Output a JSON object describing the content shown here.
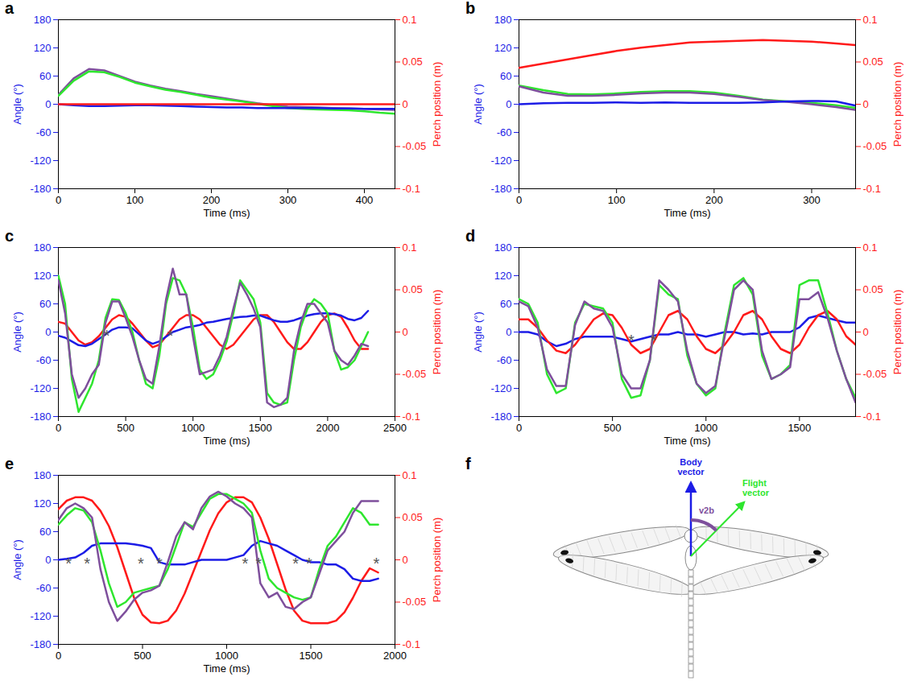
{
  "chart_data": [
    {
      "type": "line",
      "title": "a",
      "x_label": "Time (ms)",
      "y_label": "Angle (°)",
      "y2_label": "Perch position (m)",
      "xlim": [
        0,
        440
      ],
      "xticks": [
        0,
        100,
        200,
        300,
        400
      ],
      "ylim": [
        -180,
        180
      ],
      "yticks": [
        -180,
        -120,
        -60,
        0,
        60,
        120,
        180
      ],
      "y2lim": [
        -0.1,
        0.1
      ],
      "y2ticks": [
        -0.1,
        -0.05,
        0,
        0.05,
        0.1
      ],
      "x": [
        0,
        20,
        40,
        60,
        80,
        100,
        120,
        140,
        160,
        180,
        200,
        220,
        240,
        260,
        280,
        300,
        320,
        340,
        360,
        380,
        400,
        420,
        440
      ],
      "series": [
        {
          "color": "#7e4f9c",
          "values": [
            20,
            55,
            75,
            72,
            60,
            48,
            40,
            33,
            28,
            22,
            17,
            12,
            7,
            2,
            -2,
            -5,
            -6,
            -7,
            -8,
            -9,
            -10,
            -11,
            -12
          ]
        },
        {
          "color": "#2ee62e",
          "values": [
            18,
            50,
            70,
            68,
            58,
            46,
            38,
            31,
            26,
            20,
            14,
            10,
            6,
            1,
            -4,
            -8,
            -10,
            -11,
            -12,
            -13,
            -15,
            -18,
            -20
          ]
        },
        {
          "color": "#1c1ce6",
          "values": [
            0,
            -2,
            -4,
            -4,
            -3,
            -2,
            -2,
            -3,
            -4,
            -5,
            -6,
            -7,
            -7,
            -8,
            -8,
            -8,
            -8,
            -8,
            -9,
            -9,
            -10,
            -10,
            -10
          ]
        },
        {
          "color": "#ff1a1a",
          "axis": "y2",
          "values": [
            0,
            0,
            0,
            0,
            0,
            0,
            0,
            0,
            0,
            0,
            0,
            0,
            0,
            0,
            0,
            0,
            0,
            0,
            0,
            0,
            0,
            0,
            0
          ]
        }
      ],
      "annotations": []
    },
    {
      "type": "line",
      "title": "b",
      "x_label": "Time (ms)",
      "y_label": "Angle (°)",
      "y2_label": "Perch position (m)",
      "xlim": [
        0,
        345
      ],
      "xticks": [
        0,
        100,
        200,
        300
      ],
      "ylim": [
        -180,
        180
      ],
      "yticks": [
        -180,
        -120,
        -60,
        0,
        60,
        120,
        180
      ],
      "y2lim": [
        -0.1,
        0.1
      ],
      "y2ticks": [
        -0.1,
        -0.05,
        0,
        0.05,
        0.1
      ],
      "x": [
        0,
        25,
        50,
        75,
        100,
        125,
        150,
        175,
        200,
        225,
        250,
        275,
        300,
        325,
        345
      ],
      "series": [
        {
          "color": "#ff1a1a",
          "axis": "y2",
          "values": [
            0.043,
            0.048,
            0.053,
            0.058,
            0.063,
            0.067,
            0.07,
            0.073,
            0.074,
            0.075,
            0.076,
            0.075,
            0.074,
            0.072,
            0.07
          ]
        },
        {
          "color": "#2ee62e",
          "values": [
            40,
            30,
            22,
            21,
            23,
            26,
            28,
            28,
            25,
            18,
            10,
            6,
            3,
            -2,
            -8
          ]
        },
        {
          "color": "#7e4f9c",
          "values": [
            38,
            25,
            18,
            18,
            20,
            23,
            25,
            25,
            22,
            16,
            9,
            5,
            0,
            -6,
            -12
          ]
        },
        {
          "color": "#1c1ce6",
          "values": [
            0,
            2,
            3,
            3,
            4,
            3,
            4,
            3,
            3,
            3,
            4,
            6,
            7,
            6,
            -3
          ]
        }
      ],
      "annotations": []
    },
    {
      "type": "line",
      "title": "c",
      "x_label": "Time (ms)",
      "y_label": "Angle (°)",
      "y2_label": "Perch position (m)",
      "xlim": [
        0,
        2500
      ],
      "xticks": [
        0,
        500,
        1000,
        1500,
        2000,
        2500
      ],
      "ylim": [
        -180,
        180
      ],
      "yticks": [
        -180,
        -120,
        -60,
        0,
        60,
        120,
        180
      ],
      "y2lim": [
        -0.1,
        0.1
      ],
      "y2ticks": [
        -0.1,
        -0.05,
        0,
        0.05,
        0.1
      ],
      "x": [
        0,
        50,
        100,
        150,
        200,
        250,
        300,
        350,
        400,
        450,
        500,
        550,
        600,
        650,
        700,
        750,
        800,
        850,
        900,
        950,
        1000,
        1050,
        1100,
        1150,
        1200,
        1250,
        1300,
        1350,
        1400,
        1450,
        1500,
        1550,
        1600,
        1650,
        1700,
        1750,
        1800,
        1850,
        1900,
        1950,
        2000,
        2050,
        2100,
        2150,
        2200,
        2250,
        2300
      ],
      "series": [
        {
          "color": "#ff1a1a",
          "axis": "y2",
          "values": [
            0.012,
            0.01,
            0.0,
            -0.01,
            -0.015,
            -0.012,
            -0.005,
            0.005,
            0.015,
            0.02,
            0.018,
            0.01,
            0.0,
            -0.01,
            -0.018,
            -0.015,
            -0.005,
            0.005,
            0.015,
            0.02,
            0.02,
            0.015,
            0.005,
            -0.005,
            -0.015,
            -0.02,
            -0.015,
            -0.005,
            0.005,
            0.015,
            0.02,
            0.02,
            0.012,
            0.0,
            -0.012,
            -0.02,
            -0.02,
            -0.012,
            0.0,
            0.012,
            0.02,
            0.022,
            0.018,
            0.005,
            -0.01,
            -0.02,
            -0.02
          ]
        },
        {
          "color": "#1c1ce6",
          "values": [
            -8,
            -12,
            -20,
            -28,
            -30,
            -25,
            -15,
            -5,
            5,
            10,
            10,
            8,
            -5,
            -18,
            -25,
            -20,
            -10,
            0,
            5,
            10,
            12,
            15,
            20,
            22,
            25,
            28,
            30,
            32,
            33,
            35,
            35,
            30,
            25,
            22,
            22,
            25,
            30,
            35,
            38,
            40,
            40,
            38,
            35,
            28,
            25,
            30,
            45
          ]
        },
        {
          "color": "#2ee62e",
          "values": [
            120,
            60,
            -100,
            -170,
            -140,
            -110,
            -60,
            30,
            70,
            68,
            40,
            0,
            -60,
            -110,
            -120,
            -50,
            60,
            115,
            110,
            80,
            10,
            -80,
            -100,
            -90,
            -60,
            -20,
            40,
            110,
            90,
            70,
            20,
            -130,
            -150,
            -155,
            -150,
            -60,
            10,
            50,
            70,
            60,
            40,
            -40,
            -80,
            -75,
            -60,
            -30,
            0
          ]
        },
        {
          "color": "#7e4f9c",
          "values": [
            110,
            40,
            -90,
            -140,
            -120,
            -90,
            -70,
            20,
            65,
            65,
            30,
            -10,
            -60,
            -100,
            -110,
            -30,
            70,
            135,
            80,
            80,
            -10,
            -90,
            -85,
            -80,
            -50,
            -10,
            50,
            105,
            80,
            50,
            10,
            -150,
            -160,
            -155,
            -140,
            -40,
            20,
            60,
            60,
            40,
            20,
            -40,
            -60,
            -70,
            -50,
            -25,
            -30
          ]
        }
      ],
      "annotations": [
        {
          "text": "*",
          "x": 360,
          "y": 0
        },
        {
          "text": "*",
          "x": 830,
          "y": 0
        }
      ]
    },
    {
      "type": "line",
      "title": "d",
      "x_label": "Time (ms)",
      "y_label": "Angle (°)",
      "y2_label": "Perch position (m)",
      "xlim": [
        0,
        1800
      ],
      "xticks": [
        0,
        500,
        1000,
        1500
      ],
      "ylim": [
        -180,
        180
      ],
      "yticks": [
        -180,
        -120,
        -60,
        0,
        60,
        120,
        180
      ],
      "y2lim": [
        -0.1,
        0.1
      ],
      "y2ticks": [
        -0.1,
        -0.05,
        0,
        0.05,
        0.1
      ],
      "x": [
        0,
        50,
        100,
        150,
        200,
        250,
        300,
        350,
        400,
        450,
        500,
        550,
        600,
        650,
        700,
        750,
        800,
        850,
        900,
        950,
        1000,
        1050,
        1100,
        1150,
        1200,
        1250,
        1300,
        1350,
        1400,
        1450,
        1500,
        1550,
        1600,
        1650,
        1700,
        1750,
        1800
      ],
      "series": [
        {
          "color": "#1c1ce6",
          "values": [
            0,
            0,
            -5,
            -20,
            -30,
            -25,
            -15,
            -10,
            -10,
            -10,
            -10,
            -15,
            -20,
            -15,
            -10,
            -5,
            -5,
            0,
            -5,
            -5,
            -10,
            -5,
            0,
            0,
            -5,
            -3,
            -5,
            0,
            0,
            0,
            10,
            30,
            35,
            30,
            25,
            20,
            20
          ]
        },
        {
          "color": "#ff1a1a",
          "axis": "y2",
          "values": [
            0.015,
            0.015,
            0.005,
            -0.01,
            -0.022,
            -0.025,
            -0.015,
            0.0,
            0.015,
            0.022,
            0.02,
            0.005,
            -0.015,
            -0.025,
            -0.02,
            0.0,
            0.02,
            0.025,
            0.015,
            -0.005,
            -0.02,
            -0.025,
            -0.015,
            0.0,
            0.02,
            0.025,
            0.015,
            -0.005,
            -0.02,
            -0.025,
            -0.015,
            0.005,
            0.02,
            0.025,
            0.015,
            -0.005,
            -0.015
          ]
        },
        {
          "color": "#2ee62e",
          "values": [
            70,
            60,
            20,
            -90,
            -130,
            -120,
            20,
            60,
            55,
            50,
            20,
            -100,
            -140,
            -135,
            -60,
            100,
            80,
            70,
            -50,
            -110,
            -135,
            -120,
            0,
            100,
            115,
            80,
            -50,
            -100,
            -90,
            -70,
            100,
            110,
            110,
            40,
            -40,
            -100,
            -140
          ]
        },
        {
          "color": "#7e4f9c",
          "values": [
            65,
            55,
            10,
            -80,
            -115,
            -115,
            15,
            65,
            50,
            45,
            10,
            -90,
            -120,
            -120,
            -60,
            110,
            90,
            65,
            -40,
            -110,
            -130,
            -115,
            -10,
            90,
            110,
            90,
            -40,
            -100,
            -90,
            -75,
            70,
            70,
            85,
            30,
            -40,
            -100,
            -150
          ]
        }
      ],
      "annotations": [
        {
          "text": "*",
          "x": 600,
          "y": -10
        },
        {
          "text": "*",
          "x": 720,
          "y": -10
        }
      ]
    },
    {
      "type": "line",
      "title": "e",
      "x_label": "Time (ms)",
      "y_label": "Angle (°)",
      "y2_label": "Perch position (m)",
      "xlim": [
        0,
        2000
      ],
      "xticks": [
        0,
        500,
        1000,
        1500,
        2000
      ],
      "ylim": [
        -180,
        180
      ],
      "yticks": [
        -180,
        -120,
        -60,
        0,
        60,
        120,
        180
      ],
      "y2lim": [
        -0.1,
        0.1
      ],
      "y2ticks": [
        -0.1,
        -0.05,
        0,
        0.05,
        0.1
      ],
      "x": [
        0,
        50,
        100,
        150,
        200,
        250,
        300,
        350,
        400,
        450,
        500,
        550,
        600,
        650,
        700,
        750,
        800,
        850,
        900,
        950,
        1000,
        1050,
        1100,
        1150,
        1200,
        1250,
        1300,
        1350,
        1400,
        1450,
        1500,
        1550,
        1600,
        1650,
        1700,
        1750,
        1800,
        1850,
        1900
      ],
      "series": [
        {
          "color": "#ff1a1a",
          "axis": "y2",
          "values": [
            0.06,
            0.07,
            0.074,
            0.074,
            0.07,
            0.058,
            0.04,
            0.015,
            -0.015,
            -0.045,
            -0.065,
            -0.074,
            -0.075,
            -0.072,
            -0.06,
            -0.04,
            -0.015,
            0.01,
            0.035,
            0.055,
            0.068,
            0.074,
            0.074,
            0.068,
            0.05,
            0.025,
            -0.005,
            -0.035,
            -0.06,
            -0.072,
            -0.075,
            -0.075,
            -0.075,
            -0.072,
            -0.062,
            -0.045,
            -0.025,
            -0.01,
            -0.015
          ]
        },
        {
          "color": "#1c1ce6",
          "values": [
            0,
            2,
            5,
            15,
            30,
            35,
            35,
            35,
            35,
            33,
            30,
            25,
            -5,
            -10,
            -10,
            -10,
            -5,
            0,
            0,
            0,
            0,
            5,
            10,
            30,
            40,
            35,
            30,
            20,
            10,
            0,
            -5,
            -5,
            -10,
            -10,
            -20,
            -40,
            -45,
            -45,
            -40
          ]
        },
        {
          "color": "#2ee62e",
          "values": [
            75,
            95,
            110,
            105,
            80,
            20,
            -50,
            -100,
            -90,
            -70,
            -65,
            -60,
            -55,
            -20,
            30,
            80,
            70,
            100,
            130,
            140,
            140,
            130,
            120,
            100,
            20,
            -40,
            -60,
            -70,
            -80,
            -85,
            -80,
            -20,
            30,
            50,
            80,
            110,
            100,
            75,
            75
          ]
        },
        {
          "color": "#7e4f9c",
          "values": [
            85,
            110,
            120,
            110,
            90,
            -20,
            -90,
            -130,
            -110,
            -85,
            -70,
            -65,
            -55,
            -5,
            50,
            80,
            65,
            110,
            135,
            145,
            135,
            120,
            110,
            90,
            -50,
            -80,
            -70,
            -100,
            -105,
            -90,
            -80,
            -30,
            20,
            40,
            60,
            100,
            125,
            125,
            125
          ]
        }
      ],
      "annotations": [
        {
          "text": "*",
          "x": 60,
          "y": 0
        },
        {
          "text": "*",
          "x": 170,
          "y": 0
        },
        {
          "text": "*",
          "x": 490,
          "y": 0
        },
        {
          "text": "*",
          "x": 600,
          "y": 0
        },
        {
          "text": "*",
          "x": 1110,
          "y": 0
        },
        {
          "text": "*",
          "x": 1190,
          "y": 0
        },
        {
          "text": "*",
          "x": 1410,
          "y": 0
        },
        {
          "text": "*",
          "x": 1490,
          "y": 0
        },
        {
          "text": "*",
          "x": 1890,
          "y": 0
        }
      ]
    }
  ],
  "diagram": {
    "title": "f",
    "body_vector": "Body vector",
    "flight_vector": "Flight vector",
    "angle": "v2b"
  }
}
